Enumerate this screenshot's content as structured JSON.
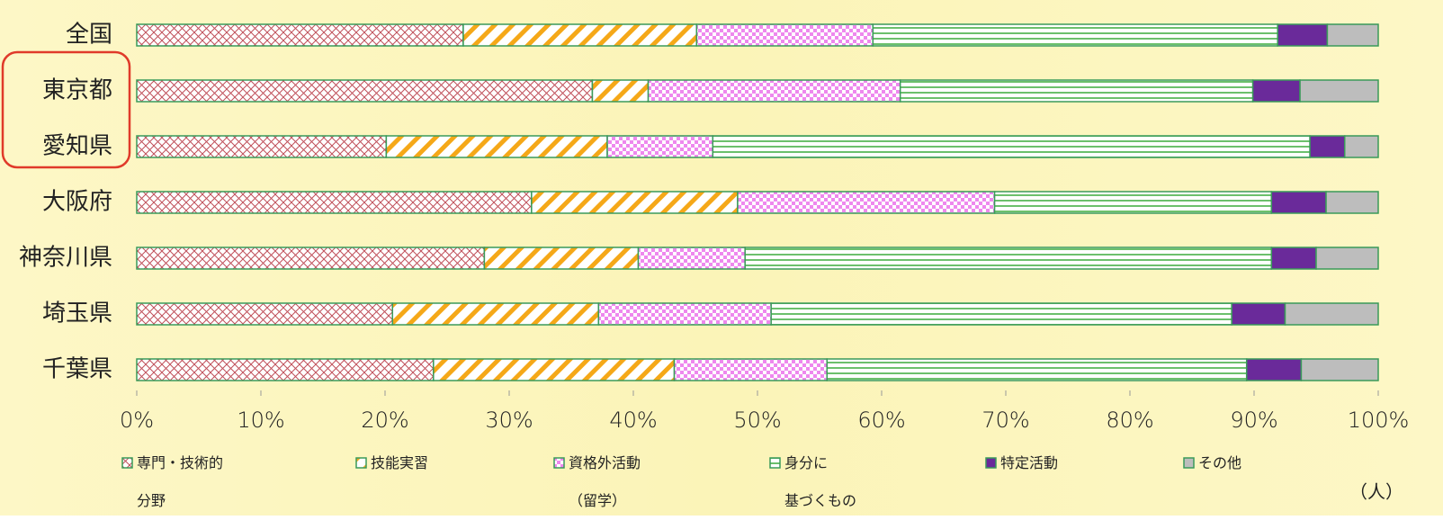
{
  "chart_data": {
    "type": "stacked-bar-horizontal",
    "categories": [
      "全国",
      "東京都",
      "愛知県",
      "大阪府",
      "神奈川県",
      "埼玉県",
      "千葉県"
    ],
    "series": [
      {
        "name": "専門・技術的\n分野",
        "color": "#c0505a",
        "pattern": "crosshatch",
        "values": [
          26.3,
          36.7,
          20.1,
          31.8,
          28.0,
          20.6,
          23.9
        ]
      },
      {
        "name": "技能実習",
        "color": "#f5a818",
        "pattern": "diagonal",
        "values": [
          18.8,
          4.5,
          17.8,
          16.6,
          12.4,
          16.6,
          19.4
        ]
      },
      {
        "name": "資格外活動\n（留学）",
        "color": "#ee88ee",
        "pattern": "checker",
        "values": [
          14.2,
          20.3,
          8.5,
          20.7,
          8.6,
          13.9,
          12.3
        ]
      },
      {
        "name": "身分に\n基づくもの",
        "color": "#6cc06c",
        "pattern": "hstripe",
        "values": [
          32.6,
          28.4,
          48.1,
          22.3,
          42.4,
          37.1,
          33.8
        ]
      },
      {
        "name": "特定活動",
        "color": "#6a2a9a",
        "pattern": "solid",
        "values": [
          4.0,
          3.8,
          2.8,
          4.4,
          3.6,
          4.3,
          4.4
        ]
      },
      {
        "name": "その他",
        "color": "#bdbdbd",
        "pattern": "solid",
        "values": [
          4.1,
          6.3,
          2.7,
          4.2,
          5.0,
          7.5,
          6.2
        ]
      }
    ],
    "xlim": [
      0,
      100
    ],
    "xticks": [
      {
        "value": 0,
        "label": "0%"
      },
      {
        "value": 10,
        "label": "10%"
      },
      {
        "value": 20,
        "label": "20%"
      },
      {
        "value": 30,
        "label": "30%"
      },
      {
        "value": 40,
        "label": "40%"
      },
      {
        "value": 50,
        "label": "50%"
      },
      {
        "value": 60,
        "label": "60%"
      },
      {
        "value": 70,
        "label": "70%"
      },
      {
        "value": 80,
        "label": "80%"
      },
      {
        "value": 90,
        "label": "90%"
      },
      {
        "value": 100,
        "label": "100%"
      }
    ],
    "grid": false,
    "unit_label": "（人）"
  }
}
